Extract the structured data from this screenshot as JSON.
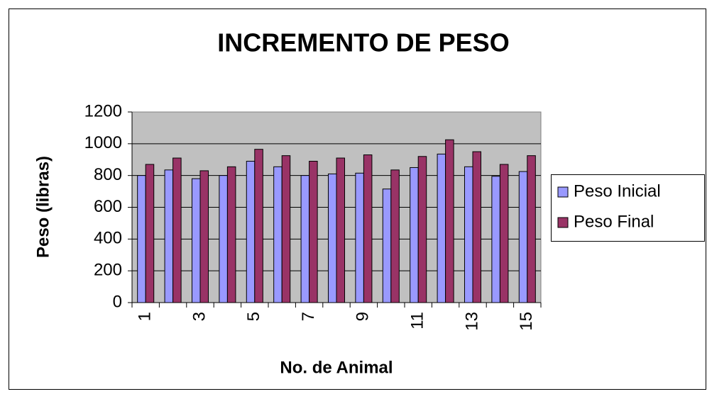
{
  "chart_data": {
    "type": "bar",
    "title": "INCREMENTO DE PESO",
    "x_label": "No. de Animal",
    "y_label": "Peso (libras)",
    "categories": [
      "1",
      null,
      "3",
      null,
      "5",
      null,
      "7",
      null,
      "9",
      null,
      "11",
      null,
      "13",
      null,
      "15"
    ],
    "series": [
      {
        "name": "Peso Inicial",
        "color": "#9999ff",
        "values": [
          800,
          835,
          780,
          800,
          890,
          855,
          800,
          810,
          815,
          715,
          850,
          935,
          855,
          795,
          825
        ]
      },
      {
        "name": "Peso Final",
        "color": "#993366",
        "values": [
          870,
          910,
          830,
          855,
          965,
          925,
          890,
          910,
          930,
          835,
          920,
          1025,
          950,
          870,
          925
        ]
      }
    ],
    "ylim": [
      0,
      1200
    ],
    "yticks": [
      0,
      200,
      400,
      600,
      800,
      1000,
      1200
    ],
    "grid": true,
    "legend": "right"
  }
}
